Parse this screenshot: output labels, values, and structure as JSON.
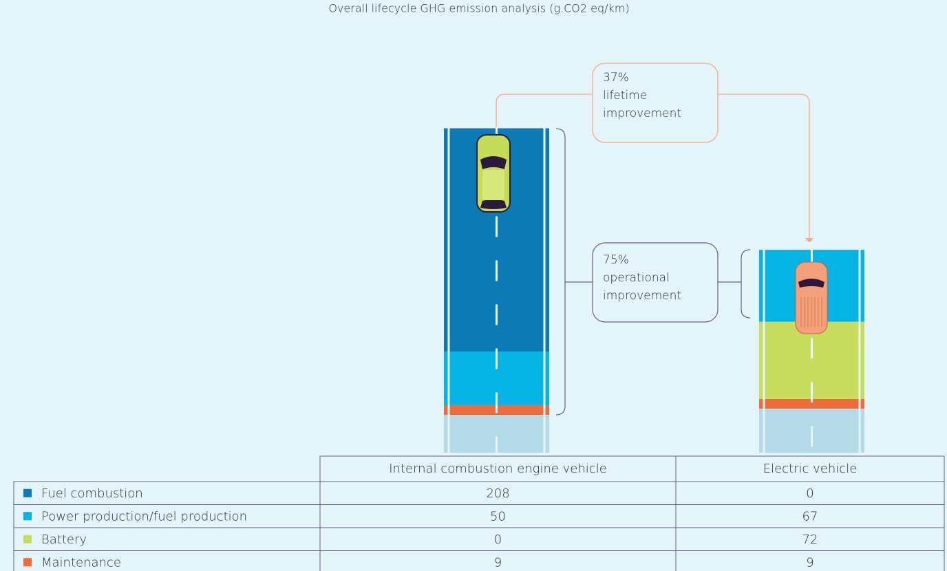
{
  "chart_data": {
    "type": "stacked-bar",
    "title": "Overall lifecycle GHG emission analysis (g.CO2 eq/km)",
    "categories": [
      "Internal combustion engine vehicle",
      "Electric vehicle"
    ],
    "series": [
      {
        "name": "Fuel combustion",
        "color": "#0b7ab5",
        "values": [
          208,
          0
        ]
      },
      {
        "name": "Power production/fuel production",
        "color": "#05b4e4",
        "values": [
          50,
          67
        ]
      },
      {
        "name": "Battery",
        "color": "#c8dc5d",
        "values": [
          0,
          72
        ]
      },
      {
        "name": "Maintenance",
        "color": "#ee6b3b",
        "values": [
          9,
          9
        ]
      }
    ],
    "annotations": [
      [
        "37%",
        "lifetime",
        "improvement"
      ],
      [
        "75%",
        "operational",
        "improvement"
      ]
    ]
  }
}
